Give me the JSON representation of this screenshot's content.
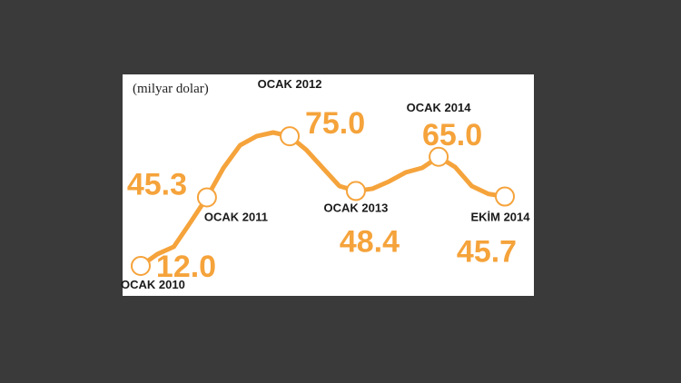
{
  "chart_data": {
    "type": "line",
    "subtitle": "(milyar dolar)",
    "categories": [
      "OCAK 2010",
      null,
      null,
      null,
      "OCAK 2011",
      null,
      null,
      null,
      null,
      "OCAK 2012",
      null,
      null,
      null,
      "OCAK 2013",
      null,
      null,
      null,
      null,
      "OCAK 2014",
      null,
      null,
      null,
      "EKİM 2014"
    ],
    "values": [
      12.0,
      17.7,
      21.3,
      33.1,
      45.3,
      59.6,
      70.6,
      75.0,
      76.8,
      75.0,
      68.4,
      59.6,
      50.8,
      48.4,
      49.5,
      53.0,
      57.4,
      59.6,
      65.0,
      60.0,
      50.8,
      47.0,
      45.7
    ],
    "value_labels": [
      "12.0",
      null,
      null,
      null,
      "45.3",
      null,
      null,
      null,
      null,
      "75.0",
      null,
      null,
      null,
      "48.4",
      null,
      null,
      null,
      null,
      "65.0",
      null,
      null,
      null,
      "45.7"
    ],
    "color": "#f5a33b"
  }
}
